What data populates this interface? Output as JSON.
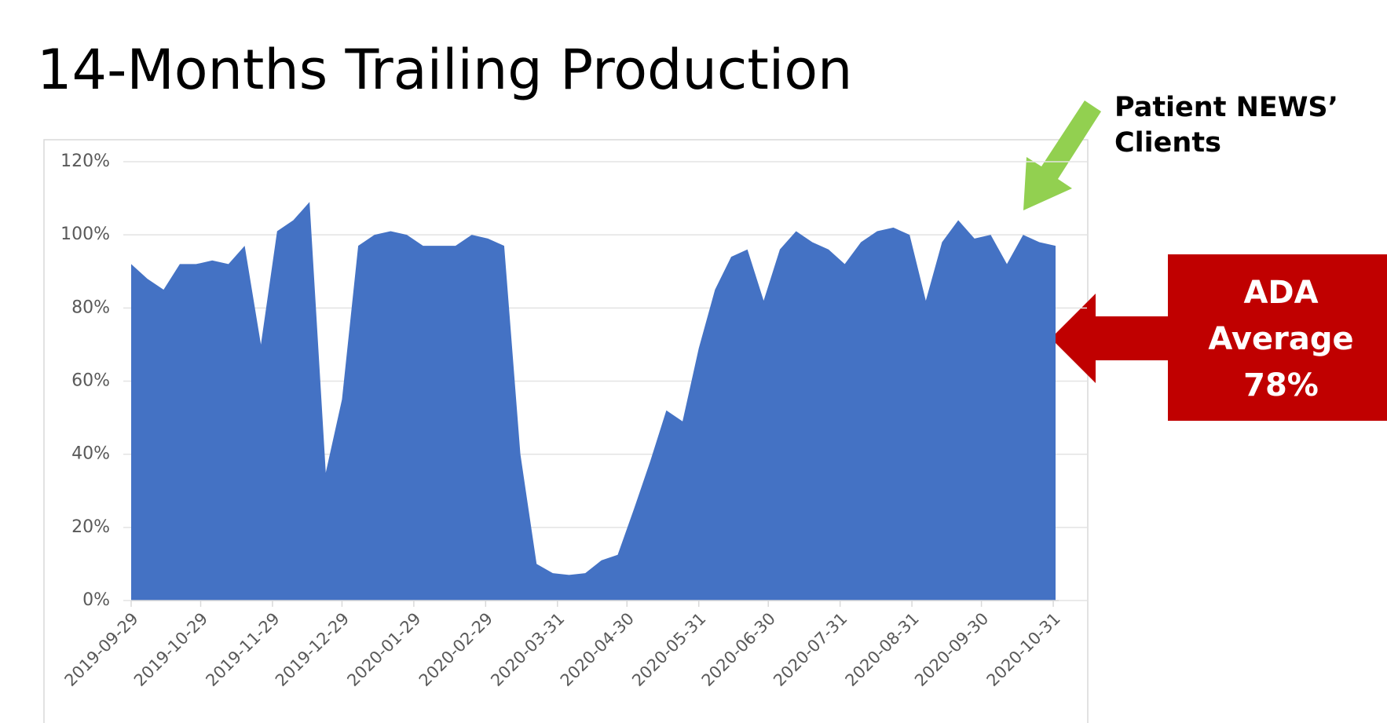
{
  "chart_data": {
    "type": "area",
    "title": "14-Months Trailing Production",
    "x": [
      "2019-09-29",
      "2019-10-06",
      "2019-10-13",
      "2019-10-20",
      "2019-10-27",
      "2019-11-03",
      "2019-11-10",
      "2019-11-17",
      "2019-11-24",
      "2019-12-01",
      "2019-12-08",
      "2019-12-15",
      "2019-12-22",
      "2019-12-29",
      "2020-01-05",
      "2020-01-12",
      "2020-01-19",
      "2020-01-26",
      "2020-02-02",
      "2020-02-09",
      "2020-02-16",
      "2020-02-23",
      "2020-03-01",
      "2020-03-08",
      "2020-03-15",
      "2020-03-22",
      "2020-03-29",
      "2020-04-05",
      "2020-04-12",
      "2020-04-19",
      "2020-04-26",
      "2020-05-03",
      "2020-05-10",
      "2020-05-17",
      "2020-05-24",
      "2020-05-31",
      "2020-06-07",
      "2020-06-14",
      "2020-06-21",
      "2020-06-28",
      "2020-07-05",
      "2020-07-12",
      "2020-07-19",
      "2020-07-26",
      "2020-08-02",
      "2020-08-09",
      "2020-08-16",
      "2020-08-23",
      "2020-08-30",
      "2020-09-06",
      "2020-09-13",
      "2020-09-20",
      "2020-09-27",
      "2020-10-04",
      "2020-10-11",
      "2020-10-18",
      "2020-10-25",
      "2020-11-01"
    ],
    "values": [
      92,
      88,
      85,
      92,
      92,
      93,
      92,
      97,
      70,
      101,
      104,
      109,
      35,
      55,
      97,
      100,
      101,
      100,
      97,
      97,
      97,
      100,
      99,
      97,
      40,
      10,
      7.5,
      7,
      7.5,
      11,
      12.5,
      25,
      38,
      52,
      49,
      69,
      85,
      94,
      96,
      82,
      96,
      101,
      98,
      96,
      92,
      98,
      101,
      102,
      100,
      82,
      98,
      104,
      99,
      100,
      92,
      100,
      98,
      97
    ],
    "color": "#4472c4",
    "xlim": [
      "2019-09-29",
      "2020-11-01"
    ],
    "xticks": [
      "2019-09-29",
      "2019-10-29",
      "2019-11-29",
      "2019-12-29",
      "2020-01-29",
      "2020-02-29",
      "2020-03-31",
      "2020-04-30",
      "2020-05-31",
      "2020-06-30",
      "2020-07-31",
      "2020-08-31",
      "2020-09-30",
      "2020-10-31"
    ],
    "ylim": [
      0,
      120
    ],
    "yticks": [
      {
        "value": 0,
        "label": "0%"
      },
      {
        "value": 20,
        "label": "20%"
      },
      {
        "value": 40,
        "label": "40%"
      },
      {
        "value": 60,
        "label": "60%"
      },
      {
        "value": 80,
        "label": "80%"
      },
      {
        "value": 100,
        "label": "100%"
      },
      {
        "value": 120,
        "label": "120%"
      }
    ],
    "grid": true,
    "annotations": [
      {
        "lines": [
          "Patient NEWS’",
          "Clients"
        ]
      },
      {
        "lines": [
          "ADA",
          "Average",
          "78%"
        ]
      }
    ]
  }
}
